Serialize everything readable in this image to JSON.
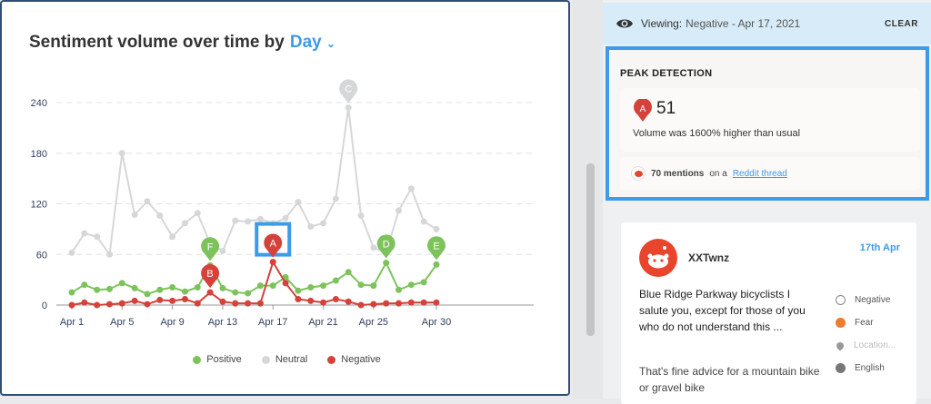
{
  "title": {
    "prefix": "Sentiment volume over time by",
    "granularity": "Day"
  },
  "legend": [
    {
      "name": "Positive",
      "color": "#7dc35b"
    },
    {
      "name": "Neutral",
      "color": "#d6d7d9"
    },
    {
      "name": "Negative",
      "color": "#d4423b"
    }
  ],
  "chart_data": {
    "type": "line",
    "title": "Sentiment volume over time by Day",
    "x": [
      "Apr 1",
      "Apr 2",
      "Apr 3",
      "Apr 4",
      "Apr 5",
      "Apr 6",
      "Apr 7",
      "Apr 8",
      "Apr 9",
      "Apr 10",
      "Apr 11",
      "Apr 12",
      "Apr 13",
      "Apr 14",
      "Apr 15",
      "Apr 16",
      "Apr 17",
      "Apr 18",
      "Apr 19",
      "Apr 20",
      "Apr 21",
      "Apr 22",
      "Apr 23",
      "Apr 24",
      "Apr 25",
      "Apr 26",
      "Apr 27",
      "Apr 28",
      "Apr 29",
      "Apr 30"
    ],
    "xticks": [
      "Apr 1",
      "Apr 5",
      "Apr 9",
      "Apr 13",
      "Apr 17",
      "Apr 21",
      "Apr 25",
      "Apr 30"
    ],
    "yticks": [
      0,
      60,
      120,
      180,
      240
    ],
    "ylim": [
      0,
      250
    ],
    "grid": true,
    "legend_position": "bottom",
    "series": [
      {
        "name": "Neutral",
        "color": "#d6d7d9",
        "values": [
          62,
          85,
          81,
          60,
          180,
          107,
          123,
          106,
          81,
          97,
          109,
          73,
          64,
          100,
          99,
          102,
          97,
          103,
          122,
          93,
          97,
          126,
          234,
          106,
          68,
          62,
          112,
          138,
          99,
          90
        ]
      },
      {
        "name": "Positive",
        "color": "#7dc35b",
        "values": [
          15,
          24,
          18,
          19,
          26,
          20,
          13,
          18,
          21,
          16,
          21,
          47,
          20,
          15,
          14,
          23,
          23,
          33,
          17,
          21,
          23,
          29,
          39,
          24,
          23,
          50,
          18,
          24,
          27,
          48
        ]
      },
      {
        "name": "Negative",
        "color": "#d4423b",
        "values": [
          0,
          3,
          0,
          1,
          2,
          5,
          1,
          6,
          5,
          7,
          2,
          15,
          4,
          2,
          2,
          2,
          51,
          26,
          7,
          5,
          3,
          7,
          4,
          0,
          1,
          2,
          2,
          3,
          3,
          3
        ]
      }
    ],
    "peaks": [
      {
        "label": "F",
        "series": "Positive",
        "x": "Apr 12"
      },
      {
        "label": "B",
        "series": "Negative",
        "x": "Apr 12"
      },
      {
        "label": "A",
        "series": "Negative",
        "x": "Apr 17",
        "selected": true
      },
      {
        "label": "C",
        "series": "Neutral",
        "x": "Apr 23"
      },
      {
        "label": "D",
        "series": "Positive",
        "x": "Apr 26"
      },
      {
        "label": "E",
        "series": "Positive",
        "x": "Apr 30"
      }
    ]
  },
  "viewing": {
    "label": "Viewing:",
    "value": "Negative - Apr 17, 2021",
    "clear": "CLEAR"
  },
  "peak": {
    "heading": "PEAK DETECTION",
    "marker": "A",
    "value": "51",
    "message": "Volume was 1600% higher than usual",
    "mentions": "70 mentions",
    "on_a": "on a",
    "link": "Reddit thread"
  },
  "post": {
    "user": "XXTwnz",
    "date": "17th Apr",
    "text": "Blue Ridge Parkway bicyclists I salute you, except for those of you who do not understand this ...",
    "text2": "That's fine advice for a mountain bike or gravel bike",
    "sentiment": "Negative",
    "emotion": "Fear",
    "location": "Location...",
    "language": "English"
  }
}
